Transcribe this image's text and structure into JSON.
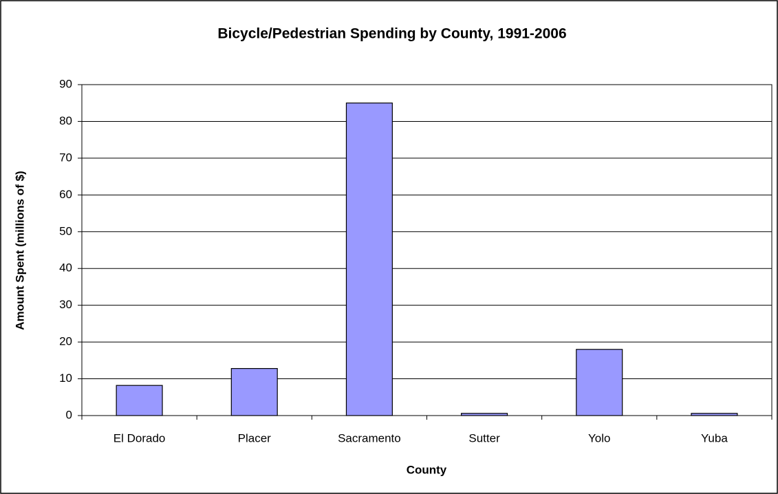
{
  "chart_data": {
    "type": "bar",
    "title": "Bicycle/Pedestrian Spending by County, 1991-2006",
    "x_label": "County",
    "y_label": "Amount Spent (millions of $)",
    "categories": [
      "El Dorado",
      "Placer",
      "Sacramento",
      "Sutter",
      "Yolo",
      "Yuba"
    ],
    "values": [
      8.2,
      12.8,
      85.0,
      0.6,
      18.0,
      0.6
    ],
    "color": "#9999ff",
    "ylim": [
      0,
      90
    ],
    "yticks": [
      0,
      10,
      20,
      30,
      40,
      50,
      60,
      70,
      80,
      90
    ],
    "grid": true
  }
}
